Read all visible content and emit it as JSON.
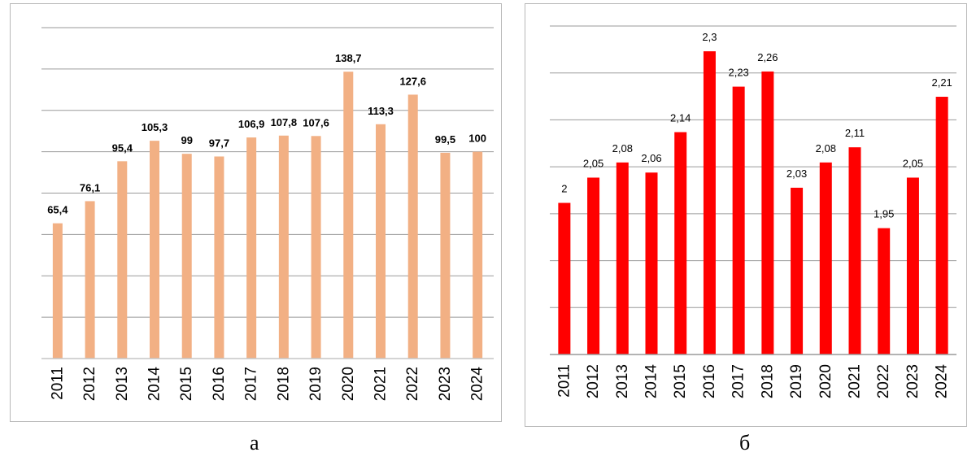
{
  "captions": {
    "a": "а",
    "b": "б"
  },
  "chart_data": [
    {
      "type": "bar",
      "categories": [
        "2011",
        "2012",
        "2013",
        "2014",
        "2015",
        "2016",
        "2017",
        "2018",
        "2019",
        "2020",
        "2021",
        "2022",
        "2023",
        "2024"
      ],
      "series": [
        {
          "values": [
            65.4,
            76.1,
            95.4,
            105.3,
            99,
            97.7,
            106.9,
            107.8,
            107.6,
            138.7,
            113.3,
            127.6,
            99.5,
            100
          ]
        }
      ],
      "value_labels": [
        "65,4",
        "76,1",
        "95,4",
        "105,3",
        "99",
        "97,7",
        "106,9",
        "107,8",
        "107,6",
        "138,7",
        "113,3",
        "127,6",
        "99,5",
        "100"
      ],
      "ylim": [
        0,
        160
      ],
      "grid": true,
      "color": "#f2b084"
    },
    {
      "type": "bar",
      "categories": [
        "2011",
        "2012",
        "2013",
        "2014",
        "2015",
        "2016",
        "2017",
        "2018",
        "2019",
        "2020",
        "2021",
        "2022",
        "2023",
        "2024"
      ],
      "series": [
        {
          "values": [
            2,
            2.05,
            2.08,
            2.06,
            2.14,
            2.3,
            2.23,
            2.26,
            2.03,
            2.08,
            2.11,
            1.95,
            2.05,
            2.21
          ]
        }
      ],
      "value_labels": [
        "2",
        "2,05",
        "2,08",
        "2,06",
        "2,14",
        "2,3",
        "2,23",
        "2,26",
        "2,03",
        "2,08",
        "2,11",
        "1,95",
        "2,05",
        "2,21"
      ],
      "ylim": [
        1.7,
        2.35
      ],
      "grid": true,
      "color": "#ff0000"
    }
  ]
}
